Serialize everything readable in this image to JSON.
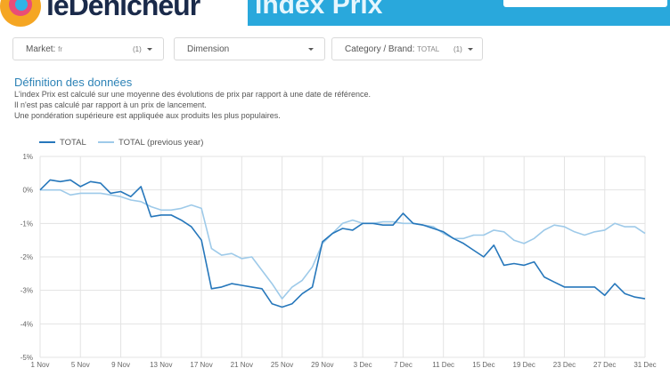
{
  "header": {
    "brand": "leDenicheur",
    "banner_title": "Index Prix",
    "colors": {
      "banner": "#29a8dc",
      "brand_text": "#1a2a4a"
    }
  },
  "filters": [
    {
      "label": "Market:",
      "value": "fr",
      "count": "(1)"
    },
    {
      "label": "Dimension",
      "value": "",
      "count": ""
    },
    {
      "label": "Category / Brand:",
      "value": "TOTAL",
      "count": "(1)"
    }
  ],
  "definition": {
    "title": "Définition des données",
    "lines": [
      "L'index Prix est calculé sur une moyenne des évolutions de prix par rapport à une date de référence.",
      "Il n'est pas calculé par rapport à un prix de lancement.",
      "Une pondération supérieure est appliquée aux produits les plus populaires."
    ]
  },
  "chart_data": {
    "type": "line",
    "ylim": [
      -5,
      1
    ],
    "y_ticks": [
      "1%",
      "0%",
      "-1%",
      "-2%",
      "-3%",
      "-4%",
      "-5%"
    ],
    "x_ticks": [
      "1 Nov",
      "5 Nov",
      "9 Nov",
      "13 Nov",
      "17 Nov",
      "21 Nov",
      "25 Nov",
      "29 Nov",
      "3 Dec",
      "7 Dec",
      "11 Dec",
      "15 Dec",
      "19 Dec",
      "23 Dec",
      "27 Dec",
      "31 Dec"
    ],
    "grid": true,
    "legend_position": "top-left",
    "series": [
      {
        "name": "TOTAL",
        "color": "#2677bb",
        "values": [
          0.0,
          0.3,
          0.25,
          0.3,
          0.1,
          0.25,
          0.2,
          -0.1,
          -0.05,
          -0.2,
          0.1,
          -0.8,
          -0.75,
          -0.75,
          -0.9,
          -1.1,
          -1.5,
          -2.95,
          -2.9,
          -2.8,
          -2.85,
          -2.9,
          -2.95,
          -3.4,
          -3.5,
          -3.4,
          -3.1,
          -2.9,
          -1.55,
          -1.3,
          -1.15,
          -1.2,
          -1.0,
          -1.0,
          -1.05,
          -1.05,
          -0.7,
          -1.0,
          -1.05,
          -1.15,
          -1.25,
          -1.45,
          -1.6,
          -1.8,
          -2.0,
          -1.65,
          -2.25,
          -2.2,
          -2.25,
          -2.15,
          -2.6,
          -2.75,
          -2.9,
          -2.9,
          -2.9,
          -2.9,
          -3.15,
          -2.8,
          -3.1,
          -3.2,
          -3.25
        ]
      },
      {
        "name": "TOTAL (previous year)",
        "color": "#9ecae9",
        "values": [
          0.0,
          0.0,
          0.0,
          -0.15,
          -0.1,
          -0.1,
          -0.1,
          -0.15,
          -0.2,
          -0.3,
          -0.35,
          -0.5,
          -0.6,
          -0.6,
          -0.55,
          -0.45,
          -0.55,
          -1.75,
          -1.95,
          -1.9,
          -2.05,
          -2.0,
          -2.4,
          -2.8,
          -3.25,
          -2.9,
          -2.7,
          -2.3,
          -1.6,
          -1.3,
          -1.0,
          -0.9,
          -1.0,
          -1.0,
          -0.95,
          -0.95,
          -1.0,
          -1.0,
          -1.05,
          -1.1,
          -1.3,
          -1.45,
          -1.45,
          -1.35,
          -1.35,
          -1.2,
          -1.25,
          -1.5,
          -1.6,
          -1.45,
          -1.2,
          -1.05,
          -1.1,
          -1.25,
          -1.35,
          -1.25,
          -1.2,
          -1.0,
          -1.1,
          -1.1,
          -1.3
        ]
      }
    ]
  }
}
